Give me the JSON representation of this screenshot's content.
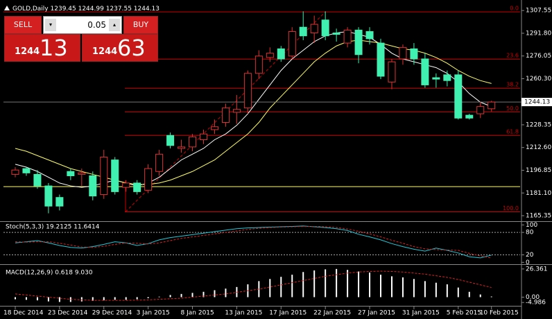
{
  "header": {
    "symbol": "GOLD,Daily"
  },
  "trade_panel": {
    "sell": "SELL",
    "buy": "BUY",
    "lot": "0.05",
    "bid_big": "1244",
    "bid_small": "13",
    "ask_big": "1244",
    "ask_small": "63"
  },
  "chart_data": [
    {
      "type": "candlestick",
      "categories": [
        "18 Dec 2014",
        null,
        null,
        null,
        "23 Dec 2014",
        null,
        null,
        null,
        "29 Dec 2014",
        null,
        null,
        null,
        "3 Jan 2015",
        null,
        null,
        null,
        "8 Jan 2015",
        null,
        null,
        null,
        "13 Jan 2015",
        null,
        null,
        null,
        "17 Jan 2015",
        null,
        null,
        null,
        "22 Jan 2015",
        null,
        null,
        null,
        "27 Jan 2015",
        null,
        null,
        null,
        "31 Jan 2015",
        null,
        null,
        null,
        "5 Feb 2015",
        null,
        null,
        "10 Feb 2015"
      ],
      "open": [
        1194,
        1198,
        1194,
        1186,
        1178,
        1196,
        1194,
        1193,
        1180,
        1204,
        1185,
        1188,
        1183,
        1196,
        1221,
        1212,
        1213,
        1218,
        1225,
        1230,
        1237,
        1240,
        1264,
        1275,
        1281,
        1276,
        1296,
        1292,
        1301,
        1292,
        1285,
        1294,
        1293,
        1285,
        1258,
        1274,
        1281,
        1274,
        1261,
        1263,
        1263,
        1235,
        1236,
        1239.45
      ],
      "high": [
        1199,
        1199,
        1197,
        1188,
        1180,
        1198,
        1198,
        1196,
        1211,
        1206,
        1190,
        1190,
        1201,
        1211,
        1223,
        1218,
        1222,
        1225,
        1232,
        1243,
        1249,
        1266,
        1280,
        1282,
        1283,
        1296,
        1307,
        1304,
        1307,
        1295,
        1296,
        1296,
        1296,
        1288,
        1274,
        1284,
        1285,
        1278,
        1264,
        1266,
        1266,
        1236,
        1244,
        1244.99
      ],
      "low": [
        1192,
        1193,
        1184,
        1167,
        1169,
        1190,
        1186,
        1176,
        1177,
        1180,
        1182,
        1180,
        1181,
        1193,
        1212,
        1209,
        1210,
        1215,
        1222,
        1227,
        1229,
        1236,
        1260,
        1272,
        1272,
        1274,
        1287,
        1285,
        1287,
        1286,
        1282,
        1271,
        1284,
        1260,
        1253,
        1270,
        1270,
        1254,
        1254,
        1255,
        1232,
        1232,
        1233,
        1237.55
      ],
      "close": [
        1197,
        1195,
        1186,
        1172,
        1172,
        1193,
        1195,
        1179,
        1206,
        1182,
        1188,
        1182,
        1198,
        1208,
        1214,
        1213,
        1220,
        1222,
        1227,
        1240,
        1239,
        1264,
        1276,
        1278,
        1274,
        1293,
        1290,
        1298,
        1290,
        1291,
        1294,
        1277,
        1288,
        1262,
        1272,
        1282,
        1274,
        1256,
        1260,
        1259,
        1233,
        1233,
        1241,
        1244.13
      ],
      "moving_averages": [
        {
          "color": "#ffffff",
          "values": [
            1201,
            1199,
            1196,
            1192,
            1188,
            1186,
            1185,
            1186,
            1188,
            1190,
            1188,
            1186,
            1188,
            1192,
            1198,
            1204,
            1208,
            1212,
            1218,
            1222,
            1228,
            1236,
            1246,
            1256,
            1266,
            1274,
            1280,
            1286,
            1290,
            1292,
            1293,
            1291,
            1289,
            1284,
            1278,
            1274,
            1272,
            1270,
            1268,
            1264,
            1258,
            1250,
            1244,
            1241
          ]
        },
        {
          "color": "#ffff66",
          "values": [
            1212,
            1210,
            1207,
            1204,
            1201,
            1198,
            1196,
            1194,
            1192,
            1190,
            1188,
            1187,
            1187,
            1188,
            1190,
            1193,
            1196,
            1200,
            1204,
            1210,
            1216,
            1222,
            1230,
            1240,
            1248,
            1256,
            1264,
            1272,
            1278,
            1283,
            1286,
            1287,
            1286,
            1285,
            1283,
            1281,
            1280,
            1278,
            1275,
            1271,
            1266,
            1262,
            1259,
            1257
          ]
        }
      ],
      "fib_levels": [
        {
          "value": 1306.6,
          "label": "0.0"
        },
        {
          "value": 1273.9,
          "label": "23.6"
        },
        {
          "value": 1253.7,
          "label": "38.2"
        },
        {
          "value": 1237.3,
          "label": "50.0"
        },
        {
          "value": 1221,
          "label": "61.8"
        },
        {
          "value": 1168,
          "label": "100.0"
        }
      ],
      "horizontal_line": 1185.5,
      "up_color": "#000000",
      "up_edge": "#dd3333",
      "down_color": "#40f0b0",
      "fib_color": "#cc0000",
      "ylim": [
        1162,
        1311
      ],
      "yticks": [
        1307.55,
        {
          "value": 1291.8,
          "label": "1291.80"
        },
        1276.05,
        {
          "value": 1260.3,
          "label": "1260.30"
        },
        1228.35,
        {
          "value": 1212.6,
          "label": "1212.60"
        },
        1196.85,
        {
          "value": 1181.1,
          "label": "1181.10"
        },
        1165.35
      ]
    },
    {
      "type": "line",
      "title": "Stoch(5,3,3) 19.2125 11.6414",
      "series": [
        {
          "color": "#20c8d8",
          "dash": false,
          "values": [
            52,
            55,
            58,
            52,
            45,
            40,
            38,
            42,
            48,
            55,
            52,
            45,
            50,
            60,
            66,
            70,
            74,
            78,
            82,
            86,
            90,
            92,
            93,
            94,
            95,
            96,
            97,
            95,
            93,
            90,
            85,
            75,
            68,
            60,
            50,
            42,
            35,
            30,
            38,
            32,
            25,
            15,
            12,
            19.2125
          ]
        },
        {
          "color": "#dd2222",
          "dash": true,
          "values": [
            55,
            54,
            55,
            55,
            51,
            46,
            41,
            40,
            43,
            48,
            52,
            51,
            49,
            52,
            58,
            64,
            68,
            72,
            76,
            80,
            84,
            88,
            91,
            93,
            94,
            95,
            96,
            96,
            95,
            93,
            89,
            83,
            76,
            68,
            59,
            51,
            42,
            36,
            34,
            33,
            32,
            24,
            17,
            11.6414
          ]
        }
      ],
      "ylim": [
        -5,
        108
      ],
      "yticks": [
        0,
        20,
        80,
        100
      ]
    },
    {
      "type": "histogram-line",
      "title": "MACD(12,26,9) 0.618 9.030",
      "bars": [
        -2,
        -2.5,
        -3,
        -4,
        -4.5,
        -4.5,
        -4,
        -3.5,
        -3,
        -2.5,
        -2.5,
        -2,
        -1,
        0.5,
        2,
        3,
        4,
        5,
        6.5,
        8,
        9.5,
        12,
        15,
        17,
        19,
        21,
        23.5,
        25,
        26,
        26.361,
        25.5,
        24,
        23,
        21,
        19.5,
        18.5,
        17,
        15,
        13.5,
        12,
        9,
        5,
        2.5,
        0.618
      ],
      "signal": [
        3,
        2,
        1,
        0,
        -1,
        -2,
        -2.5,
        -3,
        -3,
        -3,
        -3,
        -2.8,
        -2.5,
        -2,
        -1.5,
        -1,
        0,
        1,
        2,
        3,
        4.5,
        6,
        7.5,
        9.5,
        11.5,
        13.5,
        15.5,
        17.5,
        19.5,
        21,
        22.5,
        23.5,
        24,
        24.3,
        24,
        23.5,
        22.5,
        21.5,
        20,
        18.5,
        16.5,
        14,
        11.5,
        9.03
      ],
      "bar_color": "#ffffff",
      "signal_color": "#dd2222",
      "ylim": [
        -12,
        29.5
      ],
      "yticks": [
        26.361,
        {
          "value": 0,
          "label": "0.00"
        },
        -4.986
      ]
    }
  ]
}
